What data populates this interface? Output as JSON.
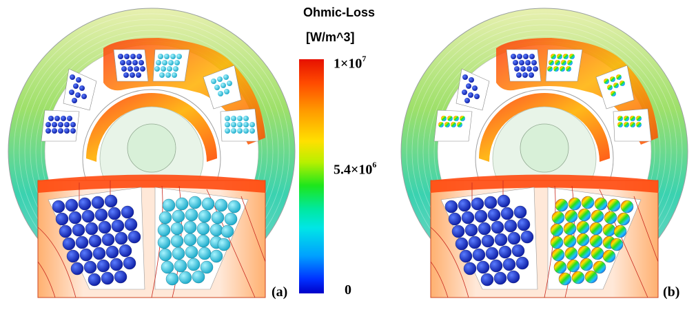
{
  "colorbar": {
    "title_line1": "Ohmic-Loss",
    "title_line2": "[W/m^3]",
    "tick_top_base": "1×10",
    "tick_top_exp": "7",
    "tick_mid_base": "5.4×10",
    "tick_mid_exp": "6",
    "tick_bottom": "0"
  },
  "panels": {
    "a": {
      "label": "(a)",
      "strands_right_color": "#2fd6e6",
      "strands_left_color": "#1a3cd8"
    },
    "b": {
      "label": "(b)",
      "strands_right_color": "#2fd6e6",
      "strands_left_color": "#1a3cd8"
    }
  },
  "colors": {
    "high": "#e61000",
    "mid": "#1de61c",
    "low": "#0000c8",
    "field_line": "#c8281e"
  }
}
